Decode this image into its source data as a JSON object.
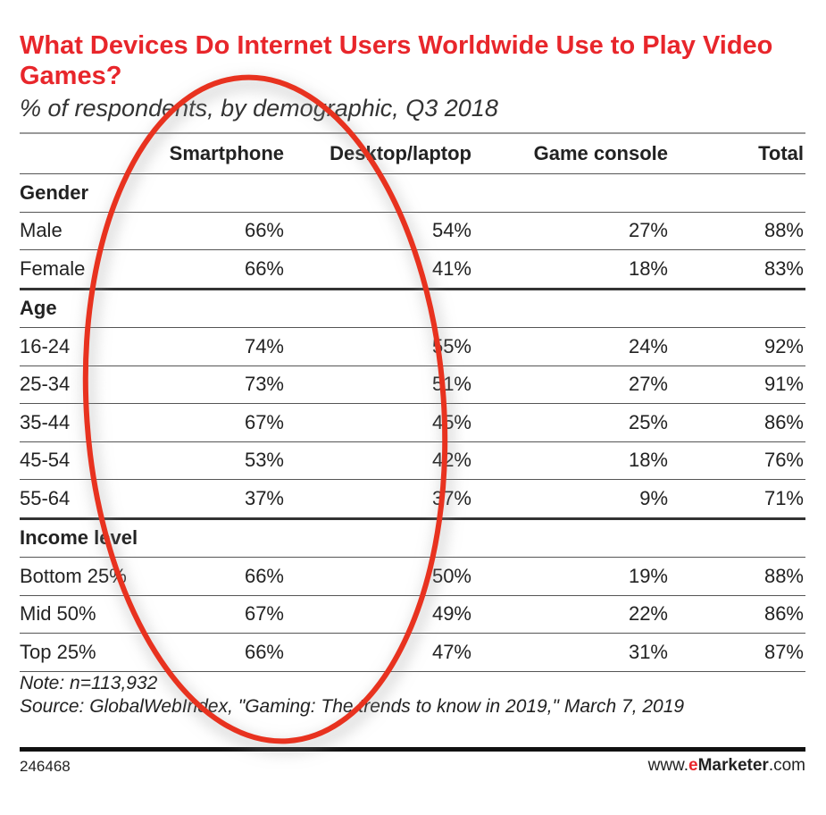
{
  "chart_data": {
    "type": "table",
    "title": "What Devices Do Internet Users Worldwide Use to Play Video Games?",
    "subtitle": "% of respondents, by demographic, Q3 2018",
    "columns": [
      "",
      "Smartphone",
      "Desktop/laptop",
      "Game console",
      "Total"
    ],
    "sections": [
      {
        "name": "Gender",
        "rows": [
          {
            "label": "Male",
            "values": [
              "66%",
              "54%",
              "27%",
              "88%"
            ]
          },
          {
            "label": "Female",
            "values": [
              "66%",
              "41%",
              "18%",
              "83%"
            ]
          }
        ]
      },
      {
        "name": "Age",
        "rows": [
          {
            "label": "16-24",
            "values": [
              "74%",
              "55%",
              "24%",
              "92%"
            ]
          },
          {
            "label": "25-34",
            "values": [
              "73%",
              "51%",
              "27%",
              "91%"
            ]
          },
          {
            "label": "35-44",
            "values": [
              "67%",
              "45%",
              "25%",
              "86%"
            ]
          },
          {
            "label": "45-54",
            "values": [
              "53%",
              "42%",
              "18%",
              "76%"
            ]
          },
          {
            "label": "55-64",
            "values": [
              "37%",
              "37%",
              "9%",
              "71%"
            ]
          }
        ]
      },
      {
        "name": "Income level",
        "rows": [
          {
            "label": "Bottom 25%",
            "values": [
              "66%",
              "50%",
              "19%",
              "88%"
            ]
          },
          {
            "label": "Mid 50%",
            "values": [
              "67%",
              "49%",
              "22%",
              "86%"
            ]
          },
          {
            "label": "Top 25%",
            "values": [
              "66%",
              "47%",
              "31%",
              "87%"
            ]
          }
        ]
      }
    ],
    "note": "Note: n=113,932",
    "source": "Source: GlobalWebIndex, \"Gaming: The trends to know in 2019,\" March 7, 2019",
    "chart_id": "246468",
    "brand": {
      "prefix": "www.",
      "e": "e",
      "name": "Marketer",
      "suffix": ".com"
    },
    "annotation": {
      "shape": "ellipse",
      "color": "#e8321f",
      "highlights": "Smartphone column"
    }
  }
}
